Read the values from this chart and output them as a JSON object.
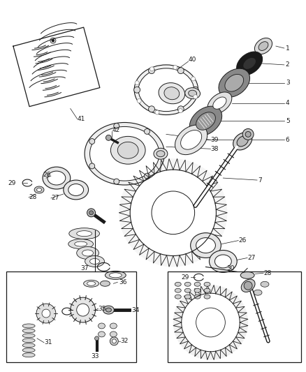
{
  "bg_color": "#ffffff",
  "fig_width": 4.38,
  "fig_height": 5.33,
  "dpi": 100,
  "line_color": "#1a1a1a",
  "label_fontsize": 6.5,
  "leader_lw": 0.5
}
